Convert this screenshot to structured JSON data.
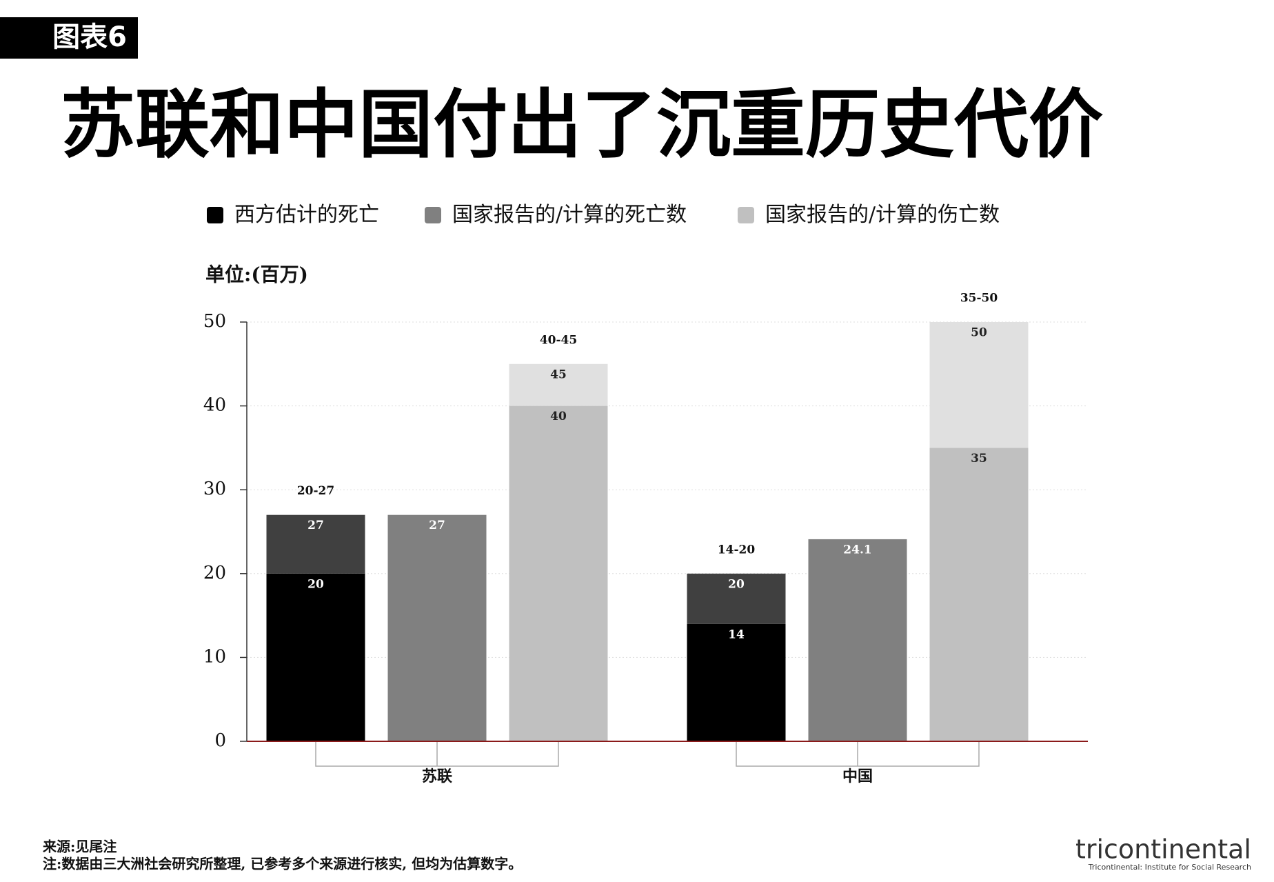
{
  "header": {
    "badge": "图表6",
    "title": "苏联和中国付出了沉重历史代价"
  },
  "chart_data": {
    "type": "range_bar",
    "y_label": "单位:(百万)",
    "categories": [
      "苏联",
      "中国"
    ],
    "series": [
      {
        "name": "西方估计的死亡",
        "color": "#000000",
        "range_color": "#404040",
        "label_color": "#ffffff",
        "low": [
          20,
          14
        ],
        "high": [
          27,
          20
        ],
        "range_labels": [
          "20-27",
          "14-20"
        ]
      },
      {
        "name": "国家报告的/计算的死亡数",
        "color": "#808080",
        "label_color": "#ffffff",
        "values": [
          27,
          24.1
        ]
      },
      {
        "name": "国家报告的/计算的伤亡数",
        "color": "#c0c0c0",
        "range_color": "#e0e0e0",
        "label_color": "#222222",
        "low": [
          40,
          35
        ],
        "high": [
          45,
          50
        ],
        "range_labels": [
          "40-45",
          "35-50"
        ]
      }
    ],
    "ylim": [
      0,
      50
    ],
    "yticks": [
      0,
      10,
      20,
      30,
      40,
      50
    ],
    "grid": true
  },
  "footer": {
    "source": "来源:见尾注",
    "note": "注:数据由三大洲社会研究所整理, 已参考多个来源进行核实, 但均为估算数字。",
    "logo": "tricontinental",
    "logo_subtitle": "Tricontinental: Institute for Social Research"
  }
}
